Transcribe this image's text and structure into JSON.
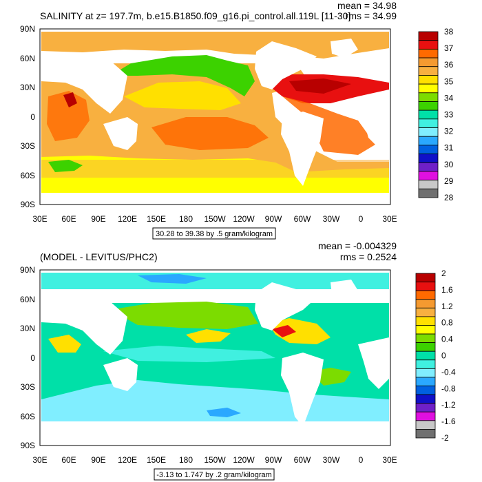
{
  "panels": [
    {
      "title": "SALINITY at z= 197.7m, b.e15.B1850.f09_g16.pi_control.all.119L [11-30]",
      "mean_text": "mean = 34.98",
      "rms_text": "rms = 34.99",
      "range_text": "30.28 to 39.38 by .5 gram/kilogram",
      "colorbar": {
        "labels": [
          "38",
          "37",
          "36",
          "35",
          "34",
          "33",
          "32",
          "31",
          "30",
          "29",
          "28"
        ],
        "colors": [
          "#b80000",
          "#e81010",
          "#ff6a00",
          "#f59a30",
          "#f8b040",
          "#ffe000",
          "#ffff00",
          "#7cdc00",
          "#3cd200",
          "#00e0a8",
          "#40f0e0",
          "#80eeff",
          "#2aa8ff",
          "#0060e0",
          "#1010c8",
          "#7020c8",
          "#e010e0",
          "#c8c8c8",
          "#707070"
        ]
      }
    },
    {
      "title": "(MODEL - LEVITUS/PHC2)",
      "mean_text": "mean = -0.004329",
      "rms_text": "rms = 0.2524",
      "range_text": "-3.13 to 1.747 by .2 gram/kilogram",
      "colorbar": {
        "labels": [
          "2",
          "1.6",
          "1.2",
          "0.8",
          "0.4",
          "0",
          "-0.4",
          "-0.8",
          "-1.2",
          "-1.6",
          "-2"
        ],
        "colors": [
          "#b80000",
          "#e81010",
          "#ff6a00",
          "#f59a30",
          "#f8b040",
          "#ffe000",
          "#ffff00",
          "#7cdc00",
          "#3cd200",
          "#00e0a8",
          "#40f0e0",
          "#80eeff",
          "#2aa8ff",
          "#0060e0",
          "#1010c8",
          "#7020c8",
          "#e010e0",
          "#c8c8c8",
          "#707070"
        ]
      }
    }
  ],
  "x_ticks": [
    "30E",
    "60E",
    "90E",
    "120E",
    "150E",
    "180",
    "150W",
    "120W",
    "90W",
    "60W",
    "30W",
    "0",
    "30E"
  ],
  "y_ticks": [
    "90N",
    "60N",
    "30N",
    "0",
    "30S",
    "60S",
    "90S"
  ]
}
